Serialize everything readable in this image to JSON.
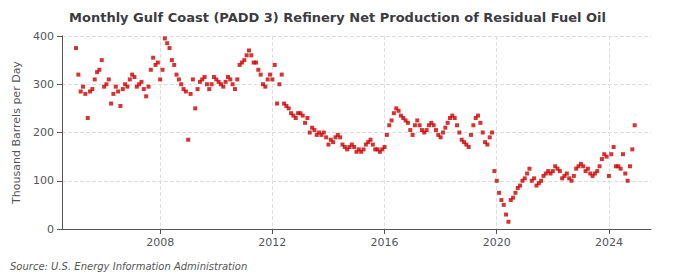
{
  "chart_data": {
    "type": "scatter",
    "title": "Monthly Gulf Coast (PADD 3) Refinery Net Production of Residual Fuel Oil",
    "ylabel": "Thousand Barrels per Day",
    "annotations": [
      "Source: U.S. Energy Information Administration"
    ],
    "color": "#cc0000",
    "marker": "square",
    "grid": true,
    "xlim": [
      2004.5,
      2025.5
    ],
    "xticks": [
      2008,
      2012,
      2016,
      2020,
      2024
    ],
    "ylim": [
      0,
      400
    ],
    "yticks": [
      0,
      100,
      200,
      300,
      400
    ],
    "x": [
      2005.0,
      2005.083,
      2005.167,
      2005.25,
      2005.333,
      2005.417,
      2005.5,
      2005.583,
      2005.667,
      2005.75,
      2005.833,
      2005.917,
      2006.0,
      2006.083,
      2006.167,
      2006.25,
      2006.333,
      2006.417,
      2006.5,
      2006.583,
      2006.667,
      2006.75,
      2006.833,
      2006.917,
      2007.0,
      2007.083,
      2007.167,
      2007.25,
      2007.333,
      2007.417,
      2007.5,
      2007.583,
      2007.667,
      2007.75,
      2007.833,
      2007.917,
      2008.0,
      2008.083,
      2008.167,
      2008.25,
      2008.333,
      2008.417,
      2008.5,
      2008.583,
      2008.667,
      2008.75,
      2008.833,
      2008.917,
      2009.0,
      2009.083,
      2009.167,
      2009.25,
      2009.333,
      2009.417,
      2009.5,
      2009.583,
      2009.667,
      2009.75,
      2009.833,
      2009.917,
      2010.0,
      2010.083,
      2010.167,
      2010.25,
      2010.333,
      2010.417,
      2010.5,
      2010.583,
      2010.667,
      2010.75,
      2010.833,
      2010.917,
      2011.0,
      2011.083,
      2011.167,
      2011.25,
      2011.333,
      2011.417,
      2011.5,
      2011.583,
      2011.667,
      2011.75,
      2011.833,
      2011.917,
      2012.0,
      2012.083,
      2012.167,
      2012.25,
      2012.333,
      2012.417,
      2012.5,
      2012.583,
      2012.667,
      2012.75,
      2012.833,
      2012.917,
      2013.0,
      2013.083,
      2013.167,
      2013.25,
      2013.333,
      2013.417,
      2013.5,
      2013.583,
      2013.667,
      2013.75,
      2013.833,
      2013.917,
      2014.0,
      2014.083,
      2014.167,
      2014.25,
      2014.333,
      2014.417,
      2014.5,
      2014.583,
      2014.667,
      2014.75,
      2014.833,
      2014.917,
      2015.0,
      2015.083,
      2015.167,
      2015.25,
      2015.333,
      2015.417,
      2015.5,
      2015.583,
      2015.667,
      2015.75,
      2015.833,
      2015.917,
      2016.0,
      2016.083,
      2016.167,
      2016.25,
      2016.333,
      2016.417,
      2016.5,
      2016.583,
      2016.667,
      2016.75,
      2016.833,
      2016.917,
      2017.0,
      2017.083,
      2017.167,
      2017.25,
      2017.333,
      2017.417,
      2017.5,
      2017.583,
      2017.667,
      2017.75,
      2017.833,
      2017.917,
      2018.0,
      2018.083,
      2018.167,
      2018.25,
      2018.333,
      2018.417,
      2018.5,
      2018.583,
      2018.667,
      2018.75,
      2018.833,
      2018.917,
      2019.0,
      2019.083,
      2019.167,
      2019.25,
      2019.333,
      2019.417,
      2019.5,
      2019.583,
      2019.667,
      2019.75,
      2019.833,
      2019.917,
      2020.0,
      2020.083,
      2020.167,
      2020.25,
      2020.333,
      2020.417,
      2020.5,
      2020.583,
      2020.667,
      2020.75,
      2020.833,
      2020.917,
      2021.0,
      2021.083,
      2021.167,
      2021.25,
      2021.333,
      2021.417,
      2021.5,
      2021.583,
      2021.667,
      2021.75,
      2021.833,
      2021.917,
      2022.0,
      2022.083,
      2022.167,
      2022.25,
      2022.333,
      2022.417,
      2022.5,
      2022.583,
      2022.667,
      2022.75,
      2022.833,
      2022.917,
      2023.0,
      2023.083,
      2023.167,
      2023.25,
      2023.333,
      2023.417,
      2023.5,
      2023.583,
      2023.667,
      2023.75,
      2023.833,
      2023.917,
      2024.0,
      2024.083,
      2024.167,
      2024.25,
      2024.333,
      2024.417,
      2024.5,
      2024.583,
      2024.667,
      2024.75,
      2024.833,
      2024.917
    ],
    "values": [
      375,
      320,
      285,
      295,
      280,
      230,
      285,
      290,
      310,
      325,
      330,
      350,
      295,
      300,
      310,
      260,
      280,
      295,
      285,
      255,
      290,
      300,
      295,
      310,
      320,
      315,
      295,
      300,
      305,
      290,
      275,
      295,
      330,
      355,
      340,
      345,
      310,
      330,
      395,
      385,
      375,
      350,
      340,
      320,
      310,
      300,
      290,
      285,
      185,
      280,
      310,
      250,
      290,
      305,
      310,
      315,
      300,
      290,
      300,
      315,
      310,
      305,
      300,
      295,
      305,
      315,
      310,
      300,
      290,
      310,
      340,
      345,
      350,
      360,
      370,
      360,
      345,
      345,
      330,
      320,
      300,
      295,
      310,
      320,
      310,
      340,
      260,
      300,
      320,
      260,
      255,
      250,
      240,
      235,
      230,
      240,
      240,
      235,
      220,
      230,
      200,
      210,
      205,
      195,
      200,
      195,
      200,
      190,
      175,
      185,
      180,
      190,
      195,
      190,
      175,
      170,
      165,
      170,
      175,
      170,
      160,
      165,
      160,
      165,
      175,
      180,
      185,
      175,
      165,
      165,
      160,
      165,
      170,
      195,
      215,
      225,
      240,
      250,
      245,
      235,
      230,
      225,
      220,
      205,
      195,
      215,
      225,
      215,
      205,
      200,
      205,
      215,
      220,
      215,
      205,
      195,
      190,
      200,
      210,
      220,
      230,
      235,
      230,
      215,
      200,
      185,
      180,
      175,
      170,
      195,
      215,
      230,
      235,
      220,
      200,
      180,
      175,
      190,
      200,
      120,
      100,
      75,
      60,
      50,
      30,
      15,
      60,
      65,
      75,
      85,
      90,
      100,
      105,
      115,
      125,
      100,
      105,
      90,
      95,
      100,
      110,
      115,
      120,
      115,
      120,
      130,
      125,
      120,
      105,
      110,
      115,
      105,
      100,
      110,
      125,
      130,
      135,
      130,
      120,
      125,
      115,
      110,
      115,
      120,
      130,
      145,
      155,
      150,
      110,
      155,
      170,
      130,
      130,
      125,
      155,
      115,
      100,
      130,
      165,
      215
    ]
  }
}
